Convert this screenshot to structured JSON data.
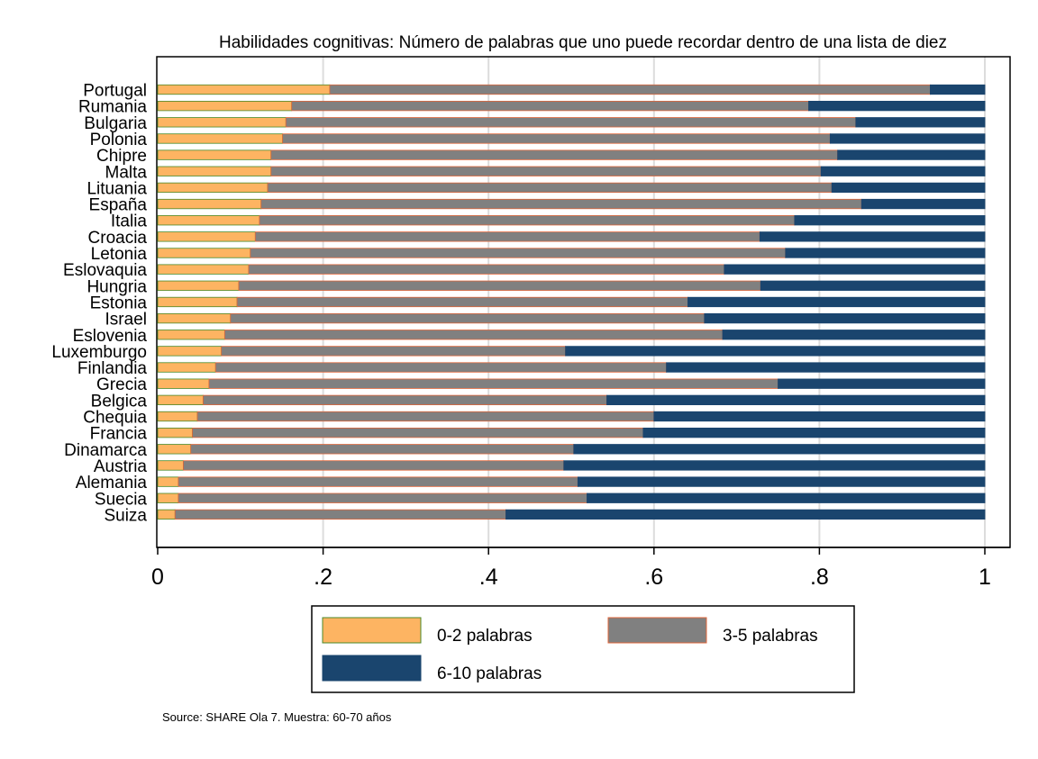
{
  "chart_data": {
    "type": "bar",
    "orientation": "horizontal",
    "stacked": true,
    "title": "Habilidades cognitivas: Número de palabras que uno puede recordar dentro de una lista de diez",
    "xlabel": "",
    "ylabel": "",
    "xlim": [
      0,
      1
    ],
    "xticks": [
      0,
      0.2,
      0.4,
      0.6,
      0.8,
      1
    ],
    "xtick_labels": [
      "0",
      ".2",
      ".4",
      ".6",
      ".8",
      "1"
    ],
    "grid": true,
    "categories": [
      "Portugal",
      "Rumania",
      "Bulgaria",
      "Polonia",
      "Chipre",
      "Malta",
      "Lituania",
      "España",
      "Italia",
      "Croacia",
      "Letonia",
      "Eslovaquia",
      "Hungria",
      "Estonia",
      "Israel",
      "Eslovenia",
      "Luxemburgo",
      "Finlandia",
      "Grecia",
      "Belgica",
      "Chequia",
      "Francia",
      "Dinamarca",
      "Austria",
      "Alemania",
      "Suecia",
      "Suiza"
    ],
    "series": [
      {
        "name": "0-2 palabras",
        "color": "#fdb462",
        "edge": "#4a8a2a",
        "values": [
          0.208,
          0.162,
          0.155,
          0.151,
          0.137,
          0.137,
          0.133,
          0.125,
          0.123,
          0.118,
          0.112,
          0.11,
          0.098,
          0.096,
          0.088,
          0.081,
          0.077,
          0.07,
          0.062,
          0.055,
          0.048,
          0.042,
          0.04,
          0.031,
          0.025,
          0.025,
          0.021
        ]
      },
      {
        "name": "3-5 palabras",
        "color": "#808080",
        "edge": "#e0663a",
        "values": [
          0.726,
          0.625,
          0.689,
          0.662,
          0.685,
          0.665,
          0.682,
          0.726,
          0.647,
          0.61,
          0.647,
          0.575,
          0.631,
          0.545,
          0.573,
          0.602,
          0.416,
          0.545,
          0.688,
          0.488,
          0.552,
          0.545,
          0.463,
          0.46,
          0.483,
          0.494,
          0.4
        ]
      },
      {
        "name": "6-10 palabras",
        "color": "#1a456e",
        "edge": "#1a456e",
        "values": [
          0.066,
          0.213,
          0.156,
          0.187,
          0.178,
          0.198,
          0.185,
          0.149,
          0.23,
          0.272,
          0.241,
          0.315,
          0.271,
          0.359,
          0.339,
          0.317,
          0.507,
          0.385,
          0.25,
          0.457,
          0.4,
          0.413,
          0.497,
          0.509,
          0.492,
          0.481,
          0.579
        ]
      }
    ],
    "legend": {
      "position": "bottom",
      "columns": 2
    },
    "source": "Source: SHARE Ola 7. Muestra: 60-70 años"
  }
}
